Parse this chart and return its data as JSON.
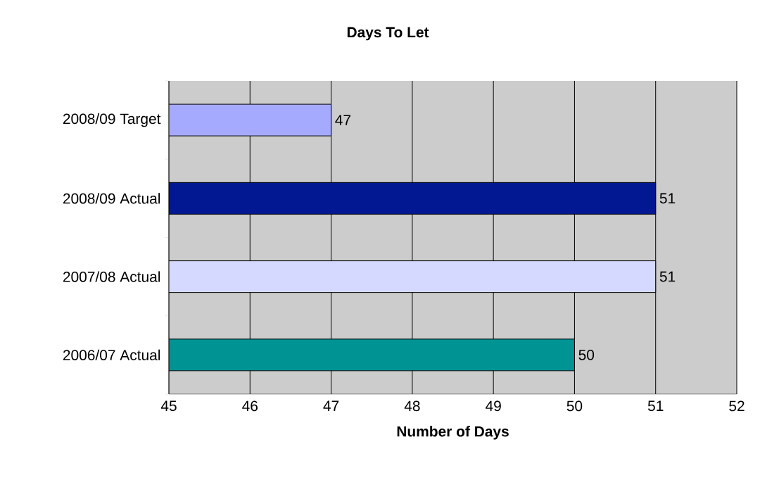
{
  "chart_data": {
    "type": "bar",
    "orientation": "horizontal",
    "title": "Days To Let",
    "xlabel": "Number of Days",
    "categories": [
      "2008/09 Target",
      "2008/09 Actual",
      "2007/08 Actual",
      "2006/07 Actual"
    ],
    "values": [
      47,
      51,
      51,
      50
    ],
    "colors": [
      "#a6aaff",
      "#021893",
      "#d5d8ff",
      "#009394"
    ],
    "xlim": [
      45,
      52
    ],
    "xticks": [
      45,
      46,
      47,
      48,
      49,
      50,
      51,
      52
    ],
    "grid": "x",
    "data_labels": true
  }
}
